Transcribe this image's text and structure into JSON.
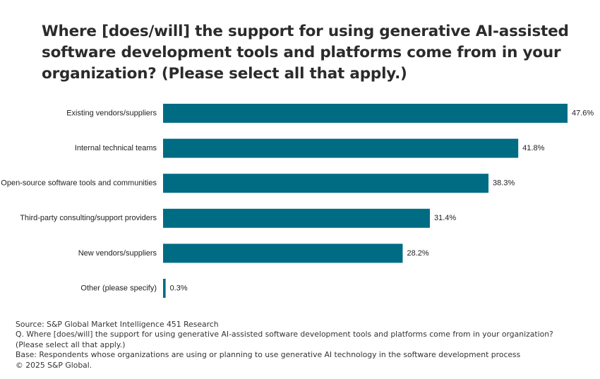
{
  "title": "Where [does/will] the support for using generative AI-assisted software development tools and platforms come from in your organization? (Please select all that apply.)",
  "chart_data": {
    "type": "bar",
    "orientation": "horizontal",
    "categories": [
      "Existing vendors/suppliers",
      "Internal technical teams",
      "Open-source software tools and communities",
      "Third-party consulting/support providers",
      "New vendors/suppliers",
      "Other (please specify)"
    ],
    "values": [
      47.6,
      41.8,
      38.3,
      31.4,
      28.2,
      0.3
    ],
    "value_labels": [
      "47.6%",
      "41.8%",
      "38.3%",
      "31.4%",
      "28.2%",
      "0.3%"
    ],
    "unit": "%",
    "xlim": [
      0,
      47.6
    ],
    "grid": false,
    "bar_color": "#006c84"
  },
  "footer": {
    "source": "Source: S&P Global Market Intelligence 451 Research",
    "question_line1": "Q. Where [does/will] the support for using generative AI-assisted software development tools and platforms come from in your organization?",
    "question_line2": "(Please select all that apply.)",
    "base": "Base: Respondents whose organizations are using or planning to use generative AI technology in the software development process",
    "copyright": "© 2025 S&P Global."
  }
}
